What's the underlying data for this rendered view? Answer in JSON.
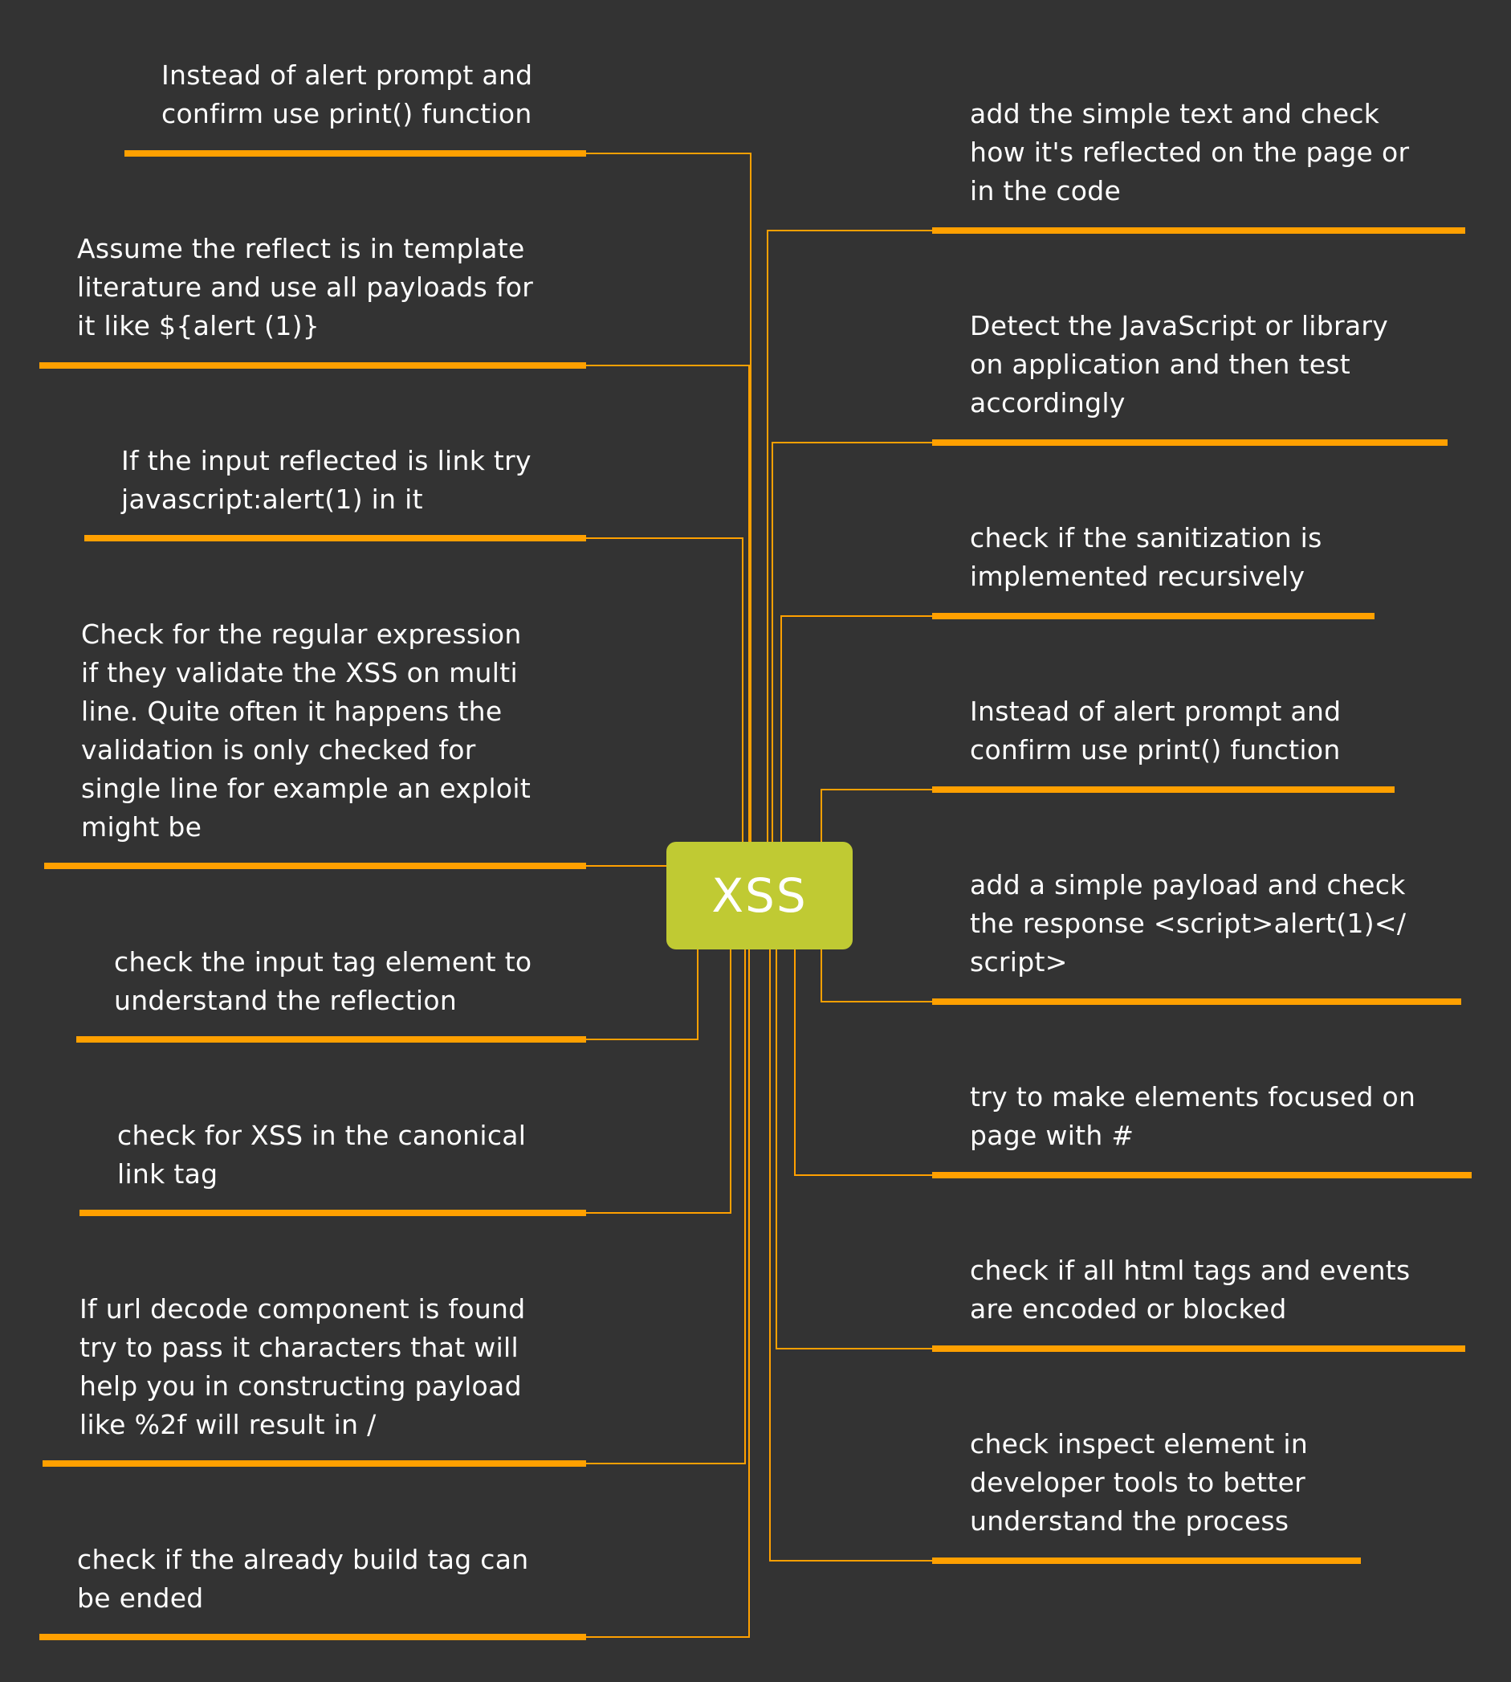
{
  "diagram": {
    "root": "XSS",
    "colors": {
      "background": "#333333",
      "root_fill": "#c0ca33",
      "connector": "#ffa000",
      "text": "#ffffff"
    },
    "left_branches": [
      {
        "text": "Instead of alert prompt and\nconfirm use print() function"
      },
      {
        "text": "Assume the reflect is in template\nliterature and use all payloads for\nit like ${alert (1)}"
      },
      {
        "text": "If the input reflected is link try\njavascript:alert(1) in it"
      },
      {
        "text": "Check for the regular expression\nif they validate the XSS on multi\nline. Quite often it happens the\nvalidation is only checked for\nsingle line for example an exploit\nmight be"
      },
      {
        "text": "check the input tag element to\nunderstand the reflection"
      },
      {
        "text": "check for XSS in the canonical\nlink tag"
      },
      {
        "text": "If url decode component is found\ntry to pass it characters that will\nhelp you in constructing payload\nlike %2f will result in /"
      },
      {
        "text": "check if the already build tag can\nbe ended"
      }
    ],
    "right_branches": [
      {
        "text": "add the simple text and check\nhow it's reflected on the page or\nin the code"
      },
      {
        "text": "Detect the JavaScript or library\non application and then test\naccordingly"
      },
      {
        "text": "check if the sanitization is\nimplemented recursively"
      },
      {
        "text": "Instead of alert prompt and\nconfirm use print() function"
      },
      {
        "text": "add a simple payload and check\nthe response <script>alert(1)</\nscript>"
      },
      {
        "text": "try to make elements focused on\npage with #"
      },
      {
        "text": "check if all html tags and events\nare encoded or blocked"
      },
      {
        "text": "check inspect element in\ndeveloper tools to better\nunderstand the process"
      }
    ]
  }
}
